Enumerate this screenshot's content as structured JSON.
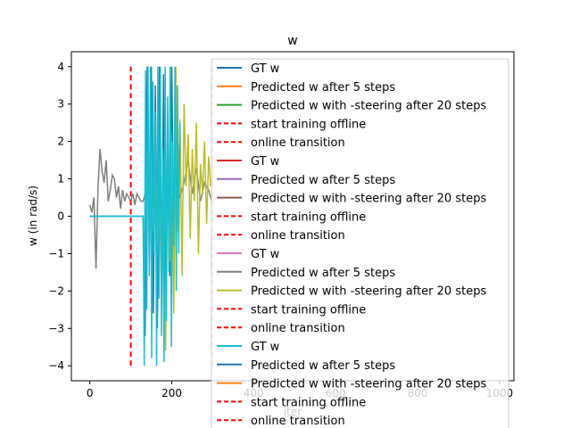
{
  "chart_data": {
    "type": "line",
    "title": "w",
    "xlabel": "iter",
    "ylabel": "w (in rad/s)",
    "xlim": [
      -45,
      1035
    ],
    "ylim": [
      -4.4,
      4.4
    ],
    "xticks": [
      0,
      200,
      400,
      600,
      800,
      1000
    ],
    "yticks": [
      -4,
      -3,
      -2,
      -1,
      0,
      1,
      2,
      3,
      4
    ],
    "grid": false,
    "legend_position": "upper-right",
    "vlines": [
      {
        "x": 100,
        "ymin": -4,
        "ymax": 4,
        "color": "#ff0000",
        "style": "dashed"
      },
      {
        "x": 300,
        "ymin": -4,
        "ymax": 4,
        "color": "#e8a0a0",
        "style": "dashed"
      }
    ],
    "series": [
      {
        "name": "GT w",
        "color": "#1f77b4",
        "style": "solid",
        "x": [
          0,
          50,
          100,
          130,
          135,
          140,
          145,
          150,
          155,
          160,
          165,
          170,
          175,
          180,
          185,
          190,
          195,
          200,
          205,
          210,
          215,
          220
        ],
        "y": [
          0,
          0,
          0,
          0,
          -3.2,
          4,
          -1.2,
          4,
          -2.6,
          3.5,
          -3.0,
          4,
          -2.0,
          3.8,
          -3.4,
          2.5,
          -1.6,
          4,
          -0.6,
          3.0,
          1.0,
          2.2
        ]
      },
      {
        "name": "Predicted w after 5 steps",
        "color": "#ff7f0e",
        "style": "solid",
        "x": [],
        "y": []
      },
      {
        "name": "Predicted w with -steering after 20 steps",
        "color": "#2ca02c",
        "style": "solid",
        "x": [],
        "y": []
      },
      {
        "name": "start training offline",
        "color": "#ff0000",
        "style": "dashed",
        "x": [],
        "y": []
      },
      {
        "name": "online transition",
        "color": "#ff0000",
        "style": "dashed",
        "x": [],
        "y": []
      },
      {
        "name": "GT w",
        "color": "#d62728",
        "style": "solid",
        "x": [],
        "y": []
      },
      {
        "name": "Predicted w after 5 steps",
        "color": "#9467bd",
        "style": "solid",
        "x": [],
        "y": []
      },
      {
        "name": "Predicted w with -steering after 20 steps",
        "color": "#8c564b",
        "style": "solid",
        "x": [],
        "y": []
      },
      {
        "name": "start training offline",
        "color": "#ff0000",
        "style": "dashed",
        "x": [],
        "y": []
      },
      {
        "name": "online transition",
        "color": "#ff0000",
        "style": "dashed",
        "x": [],
        "y": []
      },
      {
        "name": "GT w",
        "color": "#e377c2",
        "style": "solid",
        "x": [],
        "y": []
      },
      {
        "name": "Predicted w after 5 steps",
        "color": "#7f7f7f",
        "style": "solid",
        "x": [
          0,
          5,
          10,
          15,
          20,
          25,
          30,
          35,
          40,
          45,
          50,
          55,
          60,
          65,
          70,
          75,
          80,
          85,
          90,
          95,
          100,
          105,
          110,
          115,
          120,
          125,
          130,
          140,
          150,
          160,
          170,
          180,
          190,
          200,
          210,
          220,
          230,
          240,
          250,
          260,
          270,
          280,
          290,
          300
        ],
        "y": [
          0.3,
          0.1,
          0.5,
          -1.4,
          0.8,
          1.8,
          1.2,
          0.9,
          1.5,
          0.4,
          0.7,
          1.1,
          1.0,
          0.5,
          0.8,
          0.2,
          0.7,
          0.4,
          0.6,
          0.5,
          0.4,
          0.6,
          0.3,
          0.6,
          0.5,
          0.4,
          0.4,
          0.8,
          0.2,
          0.6,
          0.3,
          0.5,
          0.8,
          0.4,
          1.2,
          0.5,
          0.9,
          1.5,
          0.6,
          1.3,
          0.4,
          0.9,
          0.7,
          0.3
        ]
      },
      {
        "name": "Predicted w with -steering after 20 steps",
        "color": "#bcbd22",
        "style": "solid",
        "x": [
          155,
          160,
          165,
          170,
          175,
          180,
          185,
          190,
          195,
          200,
          205,
          210,
          215,
          220,
          225,
          230,
          235,
          240,
          245,
          250,
          255,
          260,
          265,
          270,
          275,
          280,
          285,
          290,
          295,
          300
        ],
        "y": [
          0.2,
          1.2,
          -0.8,
          1.5,
          -2.0,
          0.6,
          -3.6,
          1.0,
          -1.2,
          2.0,
          -2.6,
          4,
          -0.4,
          2.6,
          -1.6,
          3.0,
          0.8,
          2.2,
          -0.6,
          1.8,
          0.4,
          2.5,
          -1.0,
          1.4,
          0.6,
          2.0,
          -0.2,
          1.6,
          0.8,
          1.2
        ]
      },
      {
        "name": "start training offline",
        "color": "#ff0000",
        "style": "dashed",
        "x": [],
        "y": []
      },
      {
        "name": "online transition",
        "color": "#ff0000",
        "style": "dashed",
        "x": [],
        "y": []
      },
      {
        "name": "GT w",
        "color": "#17becf",
        "style": "solid",
        "x": [
          0,
          50,
          100,
          120,
          130,
          133,
          136,
          139,
          142,
          145,
          148,
          151,
          154,
          157,
          160,
          163,
          166,
          169,
          172,
          175,
          178,
          181,
          184,
          187,
          190,
          193,
          196,
          199,
          202,
          205,
          208,
          211,
          214,
          217,
          220
        ],
        "y": [
          0,
          0,
          0,
          0,
          0,
          -4,
          3.9,
          -2.5,
          4,
          -1.6,
          4,
          -3.8,
          3.6,
          -1.0,
          2.8,
          -4,
          4,
          -2.2,
          4,
          -3.2,
          1.8,
          -3.9,
          4,
          -2.8,
          3.2,
          -1.5,
          4,
          -3.5,
          2.0,
          -0.8,
          4,
          -2.0,
          3.5,
          -1.0,
          2.5
        ]
      },
      {
        "name": "Predicted w after 5 steps",
        "color": "#1f77b4",
        "style": "solid",
        "x": [],
        "y": []
      },
      {
        "name": "Predicted w with -steering after 20 steps",
        "color": "#ff7f0e",
        "style": "solid",
        "x": [],
        "y": []
      },
      {
        "name": "start training offline",
        "color": "#ff0000",
        "style": "dashed",
        "x": [],
        "y": []
      },
      {
        "name": "online transition",
        "color": "#ff0000",
        "style": "dashed",
        "x": [],
        "y": []
      }
    ]
  }
}
